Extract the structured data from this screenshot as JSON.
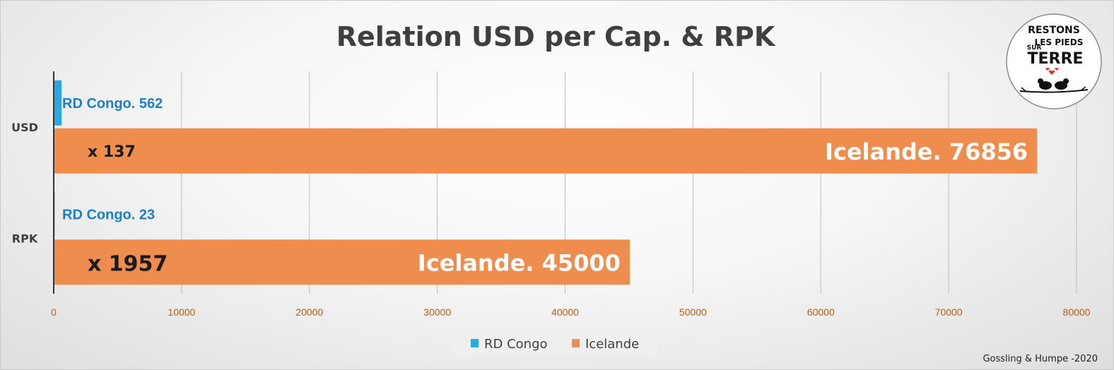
{
  "chart_data": {
    "type": "bar",
    "orientation": "horizontal",
    "title": "Relation USD per Cap. & RPK",
    "categories": [
      "USD",
      "RPK"
    ],
    "series": [
      {
        "name": "RD Congo",
        "values": [
          562,
          23
        ],
        "labels": [
          "RD Congo. 562",
          "RD Congo. 23"
        ]
      },
      {
        "name": "Icelande",
        "values": [
          76856,
          45000
        ],
        "labels": [
          "Icelande. 76856",
          "Icelande. 45000"
        ]
      }
    ],
    "ratio_labels": [
      "x 137",
      "x 1957"
    ],
    "xlim": [
      0,
      80000
    ],
    "ticks": [
      0,
      10000,
      20000,
      30000,
      40000,
      50000,
      60000,
      70000,
      80000
    ],
    "tick_labels": [
      "0",
      "10000",
      "20000",
      "30000",
      "40000",
      "50000",
      "60000",
      "70000",
      "80000"
    ],
    "grid": true,
    "legend_position": "bottom",
    "source": "Gossling & Humpe -2020"
  },
  "logo": {
    "lines": [
      "RESTONS",
      "LES PIEDS",
      "SUR",
      "TERRE"
    ]
  },
  "colors": {
    "rd_congo": "#29abe2",
    "icelande": "#ee8d4d",
    "axis_text": "#c55a11",
    "rd_label": "#1f7fc4",
    "grid": "#bdbdbd"
  }
}
